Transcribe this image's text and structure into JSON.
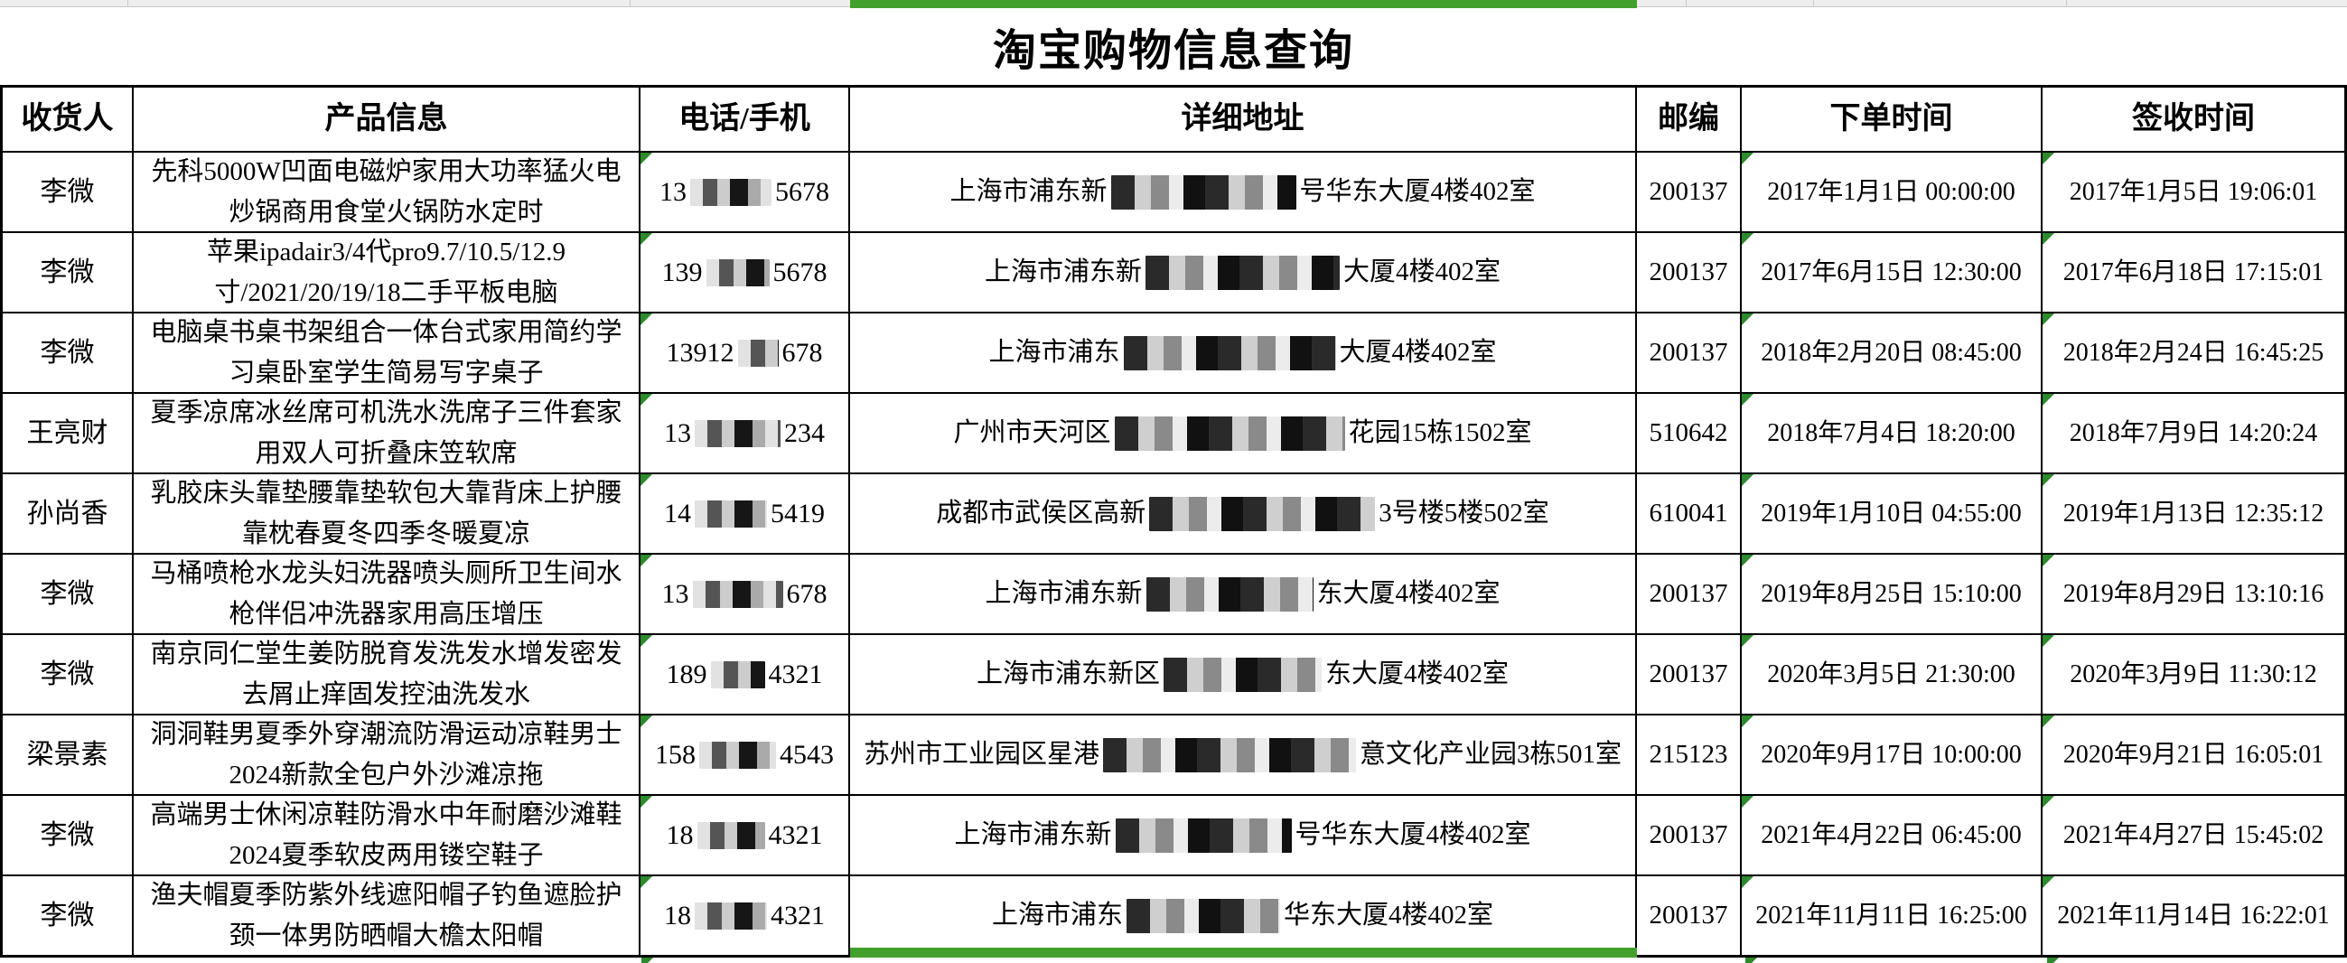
{
  "page": {
    "title": "淘宝购物信息查询"
  },
  "colors": {
    "selection_green": "#43a02c",
    "indicator_green": "#2d8a2d",
    "table_border": "#000000",
    "grid_gray": "#c9c9c9"
  },
  "table": {
    "headers": [
      "收货人",
      "产品信息",
      "电话/手机",
      "详细地址",
      "邮编",
      "下单时间",
      "签收时间"
    ],
    "header_keys": [
      "recipient",
      "product",
      "phone",
      "address",
      "zip",
      "order-time",
      "sign-time"
    ],
    "rows": [
      {
        "recipient": "李微",
        "product": "先科5000W凹面电磁炉家用大功率猛火电炒锅商用食堂火锅防水定时",
        "phone": {
          "prefix": "13",
          "hidden_w": 90,
          "suffix": "5678"
        },
        "address": {
          "prefix": "上海市浦东新",
          "hidden_w": 205,
          "suffix": "号华东大厦4楼402室"
        },
        "zip": "200137",
        "order_time": "2017年1月1日 00:00:00",
        "sign_time": "2017年1月5日 19:06:01"
      },
      {
        "recipient": "李微",
        "product": "苹果ipadair3/4代pro9.7/10.5/12.9寸/2021/20/19/18二手平板电脑",
        "phone": {
          "prefix": "139",
          "hidden_w": 70,
          "suffix": "5678"
        },
        "address": {
          "prefix": "上海市浦东新",
          "hidden_w": 215,
          "suffix": "大厦4楼402室"
        },
        "zip": "200137",
        "order_time": "2017年6月15日 12:30:00",
        "sign_time": "2017年6月18日 17:15:01"
      },
      {
        "recipient": "李微",
        "product": "电脑桌书桌书架组合一体台式家用简约学习桌卧室学生简易写字桌子",
        "phone": {
          "prefix": "13912",
          "hidden_w": 45,
          "suffix": "678"
        },
        "address": {
          "prefix": "上海市浦东",
          "hidden_w": 235,
          "suffix": "大厦4楼402室"
        },
        "zip": "200137",
        "order_time": "2018年2月20日 08:45:00",
        "sign_time": "2018年2月24日 16:45:25"
      },
      {
        "recipient": "王亮财",
        "product": "夏季凉席冰丝席可机洗水洗席子三件套家用双人可折叠床笠软席",
        "phone": {
          "prefix": "13",
          "hidden_w": 95,
          "suffix": "234"
        },
        "address": {
          "prefix": "广州市天河区",
          "hidden_w": 255,
          "suffix": "花园15栋1502室"
        },
        "zip": "510642",
        "order_time": "2018年7月4日 18:20:00",
        "sign_time": "2018年7月9日 14:20:24"
      },
      {
        "recipient": "孙尚香",
        "product": "乳胶床头靠垫腰靠垫软包大靠背床上护腰靠枕春夏冬四季冬暖夏凉",
        "phone": {
          "prefix": "14",
          "hidden_w": 80,
          "suffix": "5419"
        },
        "address": {
          "prefix": "成都市武侯区高新",
          "hidden_w": 250,
          "suffix": "3号楼5楼502室"
        },
        "zip": "610041",
        "order_time": "2019年1月10日 04:55:00",
        "sign_time": "2019年1月13日 12:35:12"
      },
      {
        "recipient": "李微",
        "product": "马桶喷枪水龙头妇洗器喷头厕所卫生间水枪伴侣冲洗器家用高压增压",
        "phone": {
          "prefix": "13",
          "hidden_w": 100,
          "suffix": "678"
        },
        "address": {
          "prefix": "上海市浦东新",
          "hidden_w": 185,
          "suffix": "东大厦4楼402室"
        },
        "zip": "200137",
        "order_time": "2019年8月25日 15:10:00",
        "sign_time": "2019年8月29日 13:10:16"
      },
      {
        "recipient": "李微",
        "product": "南京同仁堂生姜防脱育发洗发水增发密发去屑止痒固发控油洗发水",
        "phone": {
          "prefix": "189",
          "hidden_w": 60,
          "suffix": "4321"
        },
        "address": {
          "prefix": "上海市浦东新区",
          "hidden_w": 175,
          "suffix": "东大厦4楼402室"
        },
        "zip": "200137",
        "order_time": "2020年3月5日 21:30:00",
        "sign_time": "2020年3月9日 11:30:12"
      },
      {
        "recipient": "梁景素",
        "product": "洞洞鞋男夏季外穿潮流防滑运动凉鞋男士2024新款全包户外沙滩凉拖",
        "phone": {
          "prefix": "158",
          "hidden_w": 85,
          "suffix": "4543"
        },
        "address": {
          "prefix": "苏州市工业园区星港",
          "hidden_w": 280,
          "suffix": "意文化产业园3栋501室"
        },
        "zip": "215123",
        "order_time": "2020年9月17日 10:00:00",
        "sign_time": "2020年9月21日 16:05:01"
      },
      {
        "recipient": "李微",
        "product": "高端男士休闲凉鞋防滑水中年耐磨沙滩鞋2024夏季软皮两用镂空鞋子",
        "phone": {
          "prefix": "18",
          "hidden_w": 75,
          "suffix": "4321"
        },
        "address": {
          "prefix": "上海市浦东新",
          "hidden_w": 195,
          "suffix": "号华东大厦4楼402室"
        },
        "zip": "200137",
        "order_time": "2021年4月22日 06:45:00",
        "sign_time": "2021年4月27日 15:45:02"
      },
      {
        "recipient": "李微",
        "product": "渔夫帽夏季防紫外线遮阳帽子钓鱼遮脸护颈一体男防晒帽大檐太阳帽",
        "phone": {
          "prefix": "18",
          "hidden_w": 80,
          "suffix": "4321"
        },
        "address": {
          "prefix": "上海市浦东",
          "hidden_w": 170,
          "suffix": "华东大厦4楼402室"
        },
        "zip": "200137",
        "order_time": "2021年11月11日 16:25:00",
        "sign_time": "2021年11月14日 16:22:01"
      }
    ]
  }
}
